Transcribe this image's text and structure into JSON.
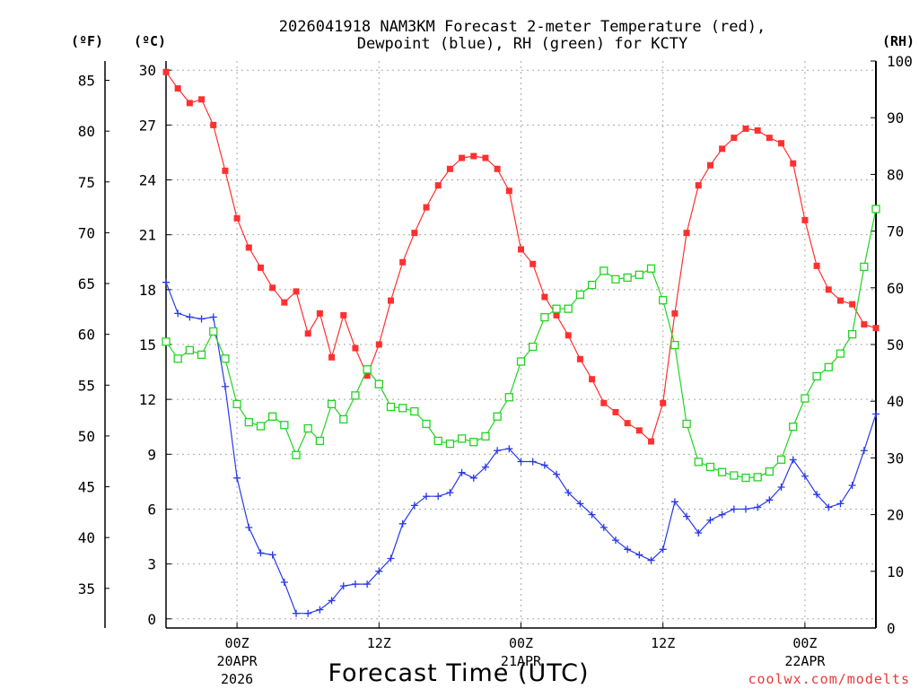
{
  "chart_data": {
    "type": "line",
    "title_line1": "2026041918 NAM3KM Forecast 2-meter Temperature (red),",
    "title_line2": "Dewpoint (blue), RH (green) for KCTY",
    "xlabel": "Forecast Time (UTC)",
    "credit": "coolwx.com/modelts",
    "units": {
      "fahrenheit": "(ºF)",
      "celsius": "(ºC)",
      "rh": "(RH)"
    },
    "x_start_hour": 18,
    "x_end_hour": 78,
    "x_ticks": [
      {
        "hour": 24,
        "line1": "00Z",
        "line2": "20APR",
        "line3": "2026"
      },
      {
        "hour": 36,
        "line1": "12Z",
        "line2": "",
        "line3": ""
      },
      {
        "hour": 48,
        "line1": "00Z",
        "line2": "21APR",
        "line3": ""
      },
      {
        "hour": 60,
        "line1": "12Z",
        "line2": "",
        "line3": ""
      },
      {
        "hour": 72,
        "line1": "00Z",
        "line2": "22APR",
        "line3": ""
      }
    ],
    "celsius_axis": {
      "range": [
        -0.5,
        30.5
      ],
      "ticks": [
        0,
        3,
        6,
        9,
        12,
        15,
        18,
        21,
        24,
        27,
        30
      ]
    },
    "fahrenheit_axis": {
      "ticks": [
        35,
        40,
        45,
        50,
        55,
        60,
        65,
        70,
        75,
        80,
        85
      ]
    },
    "rh_axis": {
      "range": [
        0,
        100
      ],
      "ticks": [
        0,
        10,
        20,
        30,
        40,
        50,
        60,
        70,
        80,
        90,
        100
      ]
    },
    "series": [
      {
        "name": "2-meter Temperature",
        "unit": "C",
        "color": "#ff3030",
        "marker": "filled-square",
        "values": [
          29.9,
          29.0,
          28.2,
          28.4,
          27.0,
          24.5,
          21.9,
          20.3,
          19.2,
          18.1,
          17.3,
          17.9,
          15.6,
          16.7,
          14.3,
          16.6,
          14.8,
          13.3,
          15.0,
          17.4,
          19.5,
          21.1,
          22.5,
          23.7,
          24.6,
          25.2,
          25.3,
          25.2,
          24.6,
          23.4,
          20.2,
          19.4,
          17.6,
          16.6,
          15.5,
          14.2,
          13.1,
          11.8,
          11.3,
          10.7,
          10.3,
          9.7,
          11.8,
          16.7,
          21.1,
          23.7,
          24.8,
          25.7,
          26.3,
          26.8,
          26.7,
          26.3,
          26.0,
          24.9,
          21.8,
          19.3,
          18.0,
          17.4,
          17.2,
          16.1,
          15.9
        ]
      },
      {
        "name": "Dewpoint",
        "unit": "C",
        "color": "#2a3ae8",
        "marker": "plus",
        "values": [
          18.4,
          16.7,
          16.5,
          16.4,
          16.5,
          12.7,
          7.7,
          5.0,
          3.6,
          3.5,
          2.0,
          0.3,
          0.3,
          0.5,
          1.0,
          1.8,
          1.9,
          1.9,
          2.6,
          3.3,
          5.2,
          6.2,
          6.7,
          6.7,
          6.9,
          8.0,
          7.7,
          8.3,
          9.2,
          9.3,
          8.6,
          8.6,
          8.4,
          7.9,
          6.9,
          6.3,
          5.7,
          5.0,
          4.3,
          3.8,
          3.5,
          3.2,
          3.8,
          6.4,
          5.6,
          4.7,
          5.4,
          5.7,
          6.0,
          6.0,
          6.1,
          6.5,
          7.2,
          8.7,
          7.8,
          6.8,
          6.1,
          6.3,
          7.3,
          9.2,
          11.2
        ]
      },
      {
        "name": "RH",
        "unit": "%",
        "color": "#22d422",
        "marker": "open-square",
        "values": [
          50.5,
          47.5,
          49.0,
          48.2,
          52.3,
          47.5,
          39.5,
          36.3,
          35.6,
          37.3,
          35.8,
          30.5,
          35.2,
          33.0,
          39.5,
          36.8,
          41.0,
          45.6,
          43.0,
          39.0,
          38.8,
          38.2,
          36.0,
          33.0,
          32.5,
          33.4,
          32.8,
          33.8,
          37.3,
          40.7,
          47.0,
          49.6,
          54.8,
          56.3,
          56.3,
          58.8,
          60.5,
          63.0,
          61.5,
          61.8,
          62.3,
          63.4,
          57.8,
          49.9,
          36.0,
          29.3,
          28.4,
          27.5,
          26.9,
          26.5,
          26.6,
          27.6,
          29.7,
          35.5,
          40.5,
          44.4,
          46.0,
          48.4,
          51.8,
          63.7,
          73.9
        ]
      }
    ]
  }
}
